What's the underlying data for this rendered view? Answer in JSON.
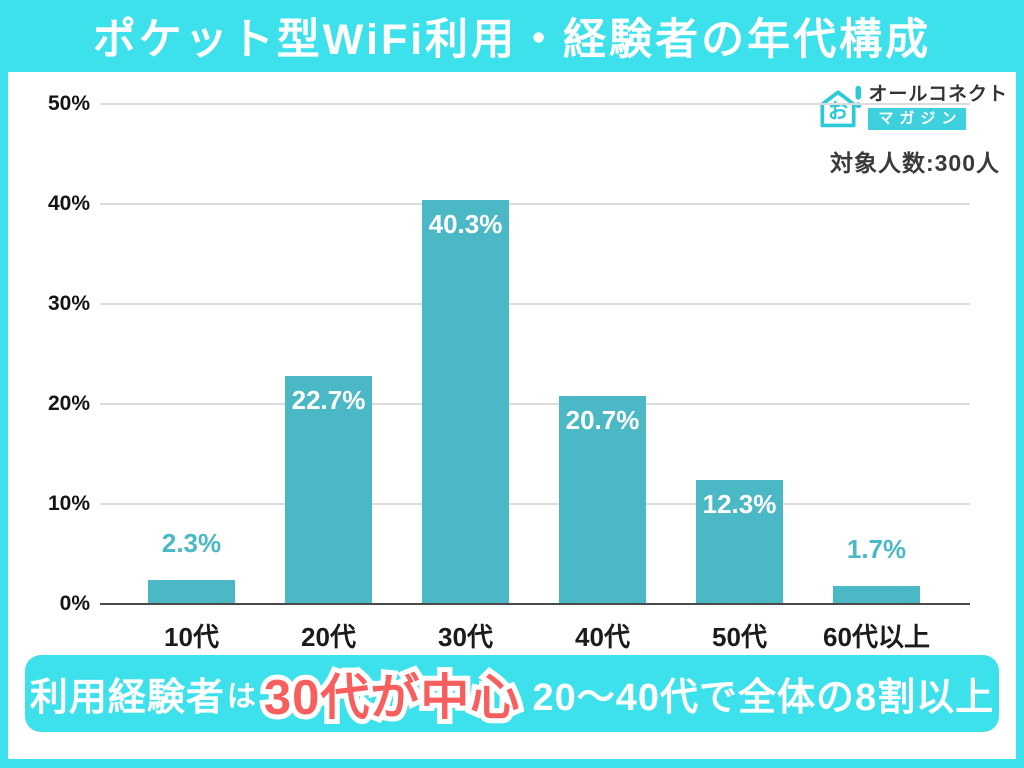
{
  "title": "ポケット型WiFi利用・経験者の年代構成",
  "logo": {
    "brand": "オールコネクト",
    "sub": "マガジン",
    "icon_char": "お",
    "icon_bang": "!"
  },
  "sample_note": "対象人数:300人",
  "chart_data": {
    "type": "bar",
    "title": "ポケット型WiFi利用・経験者の年代構成",
    "categories": [
      "10代",
      "20代",
      "30代",
      "40代",
      "50代",
      "60代以上"
    ],
    "values": [
      2.3,
      22.7,
      40.3,
      20.7,
      12.3,
      1.7
    ],
    "value_labels": [
      "2.3%",
      "22.7%",
      "40.3%",
      "20.7%",
      "12.3%",
      "1.7%"
    ],
    "xlabel": "",
    "ylabel": "",
    "ylim": [
      0,
      50
    ],
    "yticks": [
      {
        "label": "0%",
        "value": 0
      },
      {
        "label": "10%",
        "value": 10
      },
      {
        "label": "20%",
        "value": 20
      },
      {
        "label": "30%",
        "value": 30
      },
      {
        "label": "40%",
        "value": 40
      },
      {
        "label": "50%",
        "value": 50
      }
    ],
    "grid": true,
    "legend": false,
    "bar_color": "#4ab8c5",
    "inside_label_threshold": 10
  },
  "footer": {
    "segments": [
      {
        "text": "利用経験者",
        "style": "w-lg"
      },
      {
        "text": "は",
        "style": "w-sm"
      },
      {
        "text": "30代が中心",
        "style": "red"
      },
      {
        "text": "20〜40代で全体の8割以上",
        "style": "w-lg"
      }
    ]
  },
  "colors": {
    "frame_cyan": "#3ce1ec",
    "bar_teal": "#4ab8c5",
    "accent_red": "#f75f5f",
    "logo_teal": "#2cc9d6",
    "text_dark": "#333333"
  }
}
